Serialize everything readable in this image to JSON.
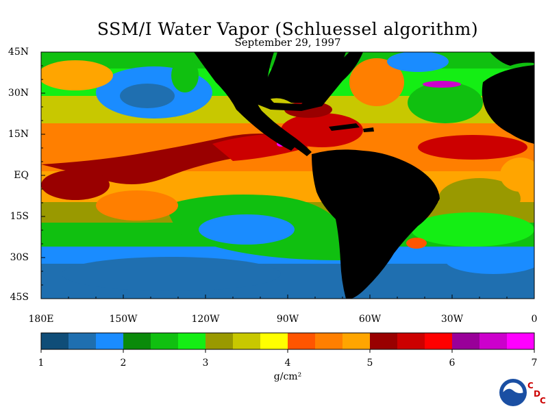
{
  "title": "SSM/I Water Vapor (Schluessel algorithm)",
  "subtitle": "September 29, 1997",
  "lat_labels": [
    "45N",
    "30N",
    "15N",
    "EQ",
    "15S",
    "30S",
    "45S"
  ],
  "lon_labels": [
    "180E",
    "150W",
    "120W",
    "90W",
    "60W",
    "30W",
    "0"
  ],
  "colorbar": {
    "min": 1,
    "max": 7,
    "tick_labels": [
      "1",
      "2",
      "3",
      "4",
      "5",
      "6",
      "7"
    ],
    "units": "g/cm²",
    "colors": [
      "#0f4d78",
      "#1f6fb0",
      "#1a8cff",
      "#0a8a0a",
      "#10c010",
      "#14ee14",
      "#999900",
      "#c8c800",
      "#ffff00",
      "#ff5500",
      "#ff7f00",
      "#ffa500",
      "#990000",
      "#cc0000",
      "#ff0000",
      "#990099",
      "#cc00cc",
      "#ff00ff"
    ]
  },
  "map": {
    "type": "heatmap",
    "variable": "water vapor",
    "lat_range": [
      -45,
      45
    ],
    "lon_range": [
      -180,
      0
    ],
    "land_color": "#000000"
  },
  "logo": {
    "name": "NOAA"
  },
  "cdc_letters": [
    "C",
    "D",
    "C"
  ]
}
